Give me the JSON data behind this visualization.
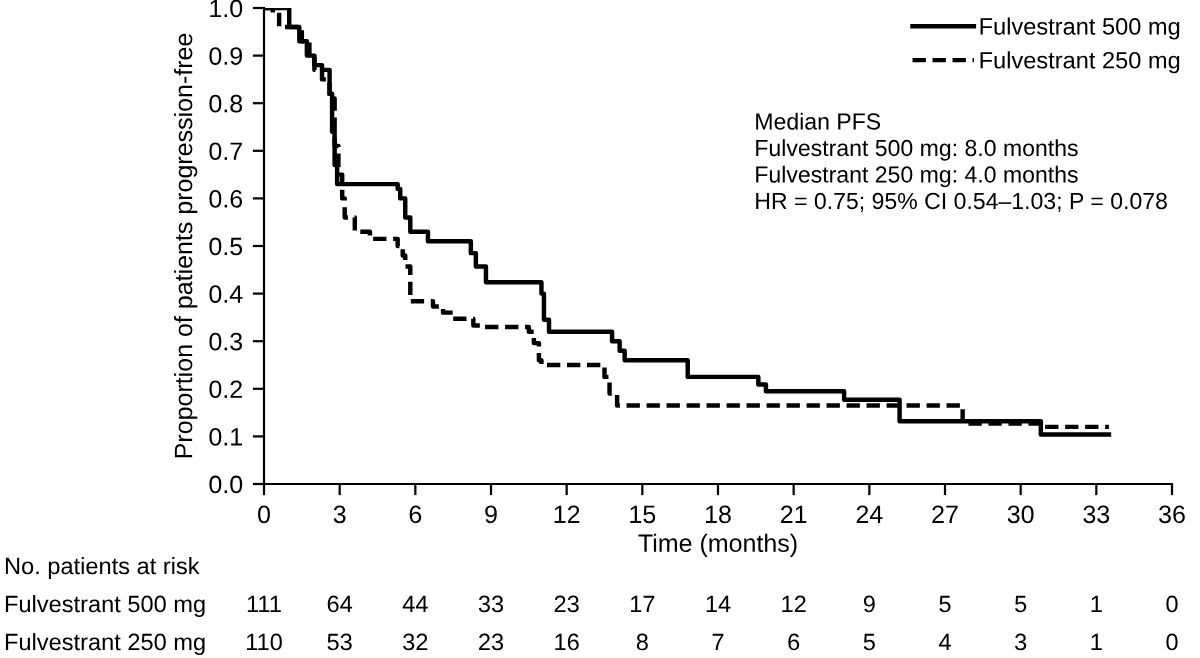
{
  "chart_data": {
    "type": "step",
    "xlabel": "Time (months)",
    "ylabel": "Proportion of patients progression-free",
    "xlim": [
      0,
      36
    ],
    "xticks": [
      0,
      3,
      6,
      9,
      12,
      15,
      18,
      21,
      24,
      27,
      30,
      33,
      36
    ],
    "ylim": [
      0,
      1.0
    ],
    "yticks": [
      {
        "value": 0,
        "label": "0.0"
      },
      0.1,
      0.2,
      0.3,
      0.4,
      0.5,
      0.6,
      0.7,
      0.8,
      0.9,
      {
        "value": 1,
        "label": "1.0"
      }
    ],
    "grid": false,
    "legend": "top right",
    "series": [
      {
        "name": "Fulvestrant 500 mg",
        "color": "#000000",
        "line_style": "solid",
        "x": [
          0,
          1.0,
          1.4,
          1.7,
          2.0,
          2.3,
          2.6,
          2.7,
          2.8,
          2.9,
          3.1,
          5.3,
          5.4,
          5.6,
          5.8,
          6.5,
          8.2,
          8.4,
          8.8,
          11.0,
          11.1,
          11.3,
          13.8,
          14.1,
          14.3,
          16.8,
          19.6,
          19.9,
          23.0,
          25.2,
          30.8,
          33.5
        ],
        "values": [
          1.0,
          0.96,
          0.93,
          0.9,
          0.88,
          0.87,
          0.82,
          0.74,
          0.67,
          0.63,
          0.63,
          0.62,
          0.6,
          0.56,
          0.53,
          0.51,
          0.485,
          0.457,
          0.424,
          0.4,
          0.345,
          0.32,
          0.3,
          0.28,
          0.26,
          0.225,
          0.209,
          0.195,
          0.177,
          0.132,
          0.104,
          0.104
        ]
      },
      {
        "name": "Fulvestrant 250 mg",
        "color": "#000000",
        "line_style": "dashed",
        "x": [
          0,
          0.35,
          0.6,
          1.0,
          1.5,
          1.8,
          2.0,
          2.3,
          2.6,
          2.8,
          2.95,
          3.1,
          3.2,
          3.6,
          4.2,
          5.3,
          5.5,
          5.6,
          5.8,
          6.7,
          7.1,
          7.5,
          8.3,
          8.7,
          10.5,
          10.7,
          10.9,
          11.0,
          13.5,
          13.7,
          14.0,
          27.7,
          30.8,
          33.5
        ],
        "values": [
          1.0,
          0.99,
          0.96,
          0.96,
          0.93,
          0.9,
          0.87,
          0.85,
          0.81,
          0.71,
          0.65,
          0.6,
          0.56,
          0.53,
          0.515,
          0.5,
          0.48,
          0.457,
          0.384,
          0.373,
          0.36,
          0.347,
          0.333,
          0.33,
          0.32,
          0.296,
          0.26,
          0.25,
          0.225,
          0.19,
          0.165,
          0.127,
          0.12,
          0.12
        ]
      }
    ],
    "annotations": [
      "Median PFS\nFulvestrant 500 mg: 8.0 months\nFulvestrant 250 mg: 4.0 months\nHR = 0.75; 95% CI 0.54–1.03; P = 0.078",
      "No. patients at risk",
      "Fulvestrant 500 mg",
      "111",
      "64",
      "44",
      "33",
      "23",
      "17",
      "14",
      "12",
      "9",
      "5",
      "5",
      "1",
      "0",
      "Fulvestrant 250 mg",
      "110",
      "53",
      "32",
      "23",
      "16",
      "8",
      "7",
      "6",
      "5",
      "4",
      "3",
      "1",
      "0"
    ]
  }
}
